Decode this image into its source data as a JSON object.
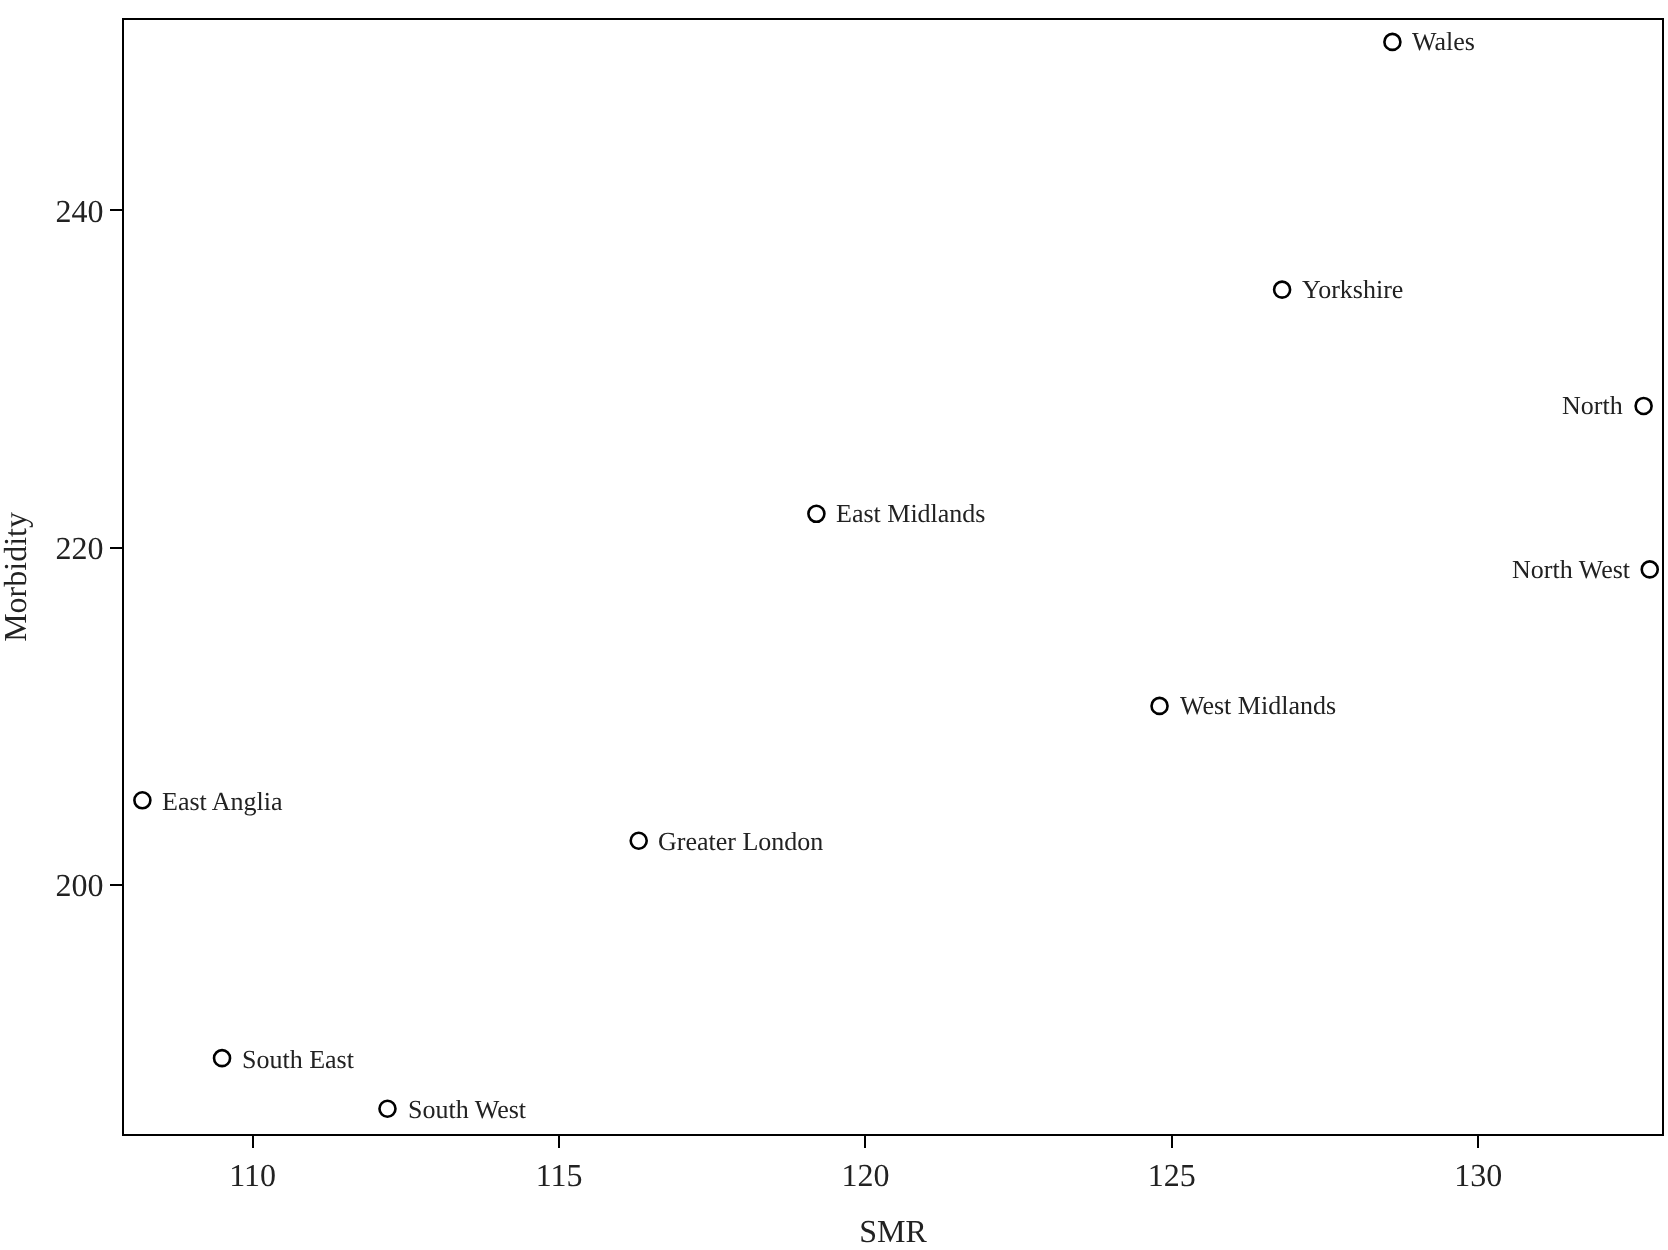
{
  "chart_data": {
    "type": "scatter",
    "xlabel": "SMR",
    "ylabel": "Morbidity",
    "x": [
      128.6,
      126.8,
      132.7,
      119.2,
      132.8,
      124.8,
      108.2,
      116.3,
      109.5,
      112.2
    ],
    "values": [
      250.0,
      235.3,
      228.4,
      222.0,
      218.7,
      210.6,
      205.0,
      202.6,
      189.7,
      186.7
    ],
    "annotations": [
      {
        "text": "Wales",
        "x": 128.6,
        "y": 250.0
      },
      {
        "text": "Yorkshire",
        "x": 126.8,
        "y": 235.3
      },
      {
        "text": "North",
        "x": 132.7,
        "y": 228.4
      },
      {
        "text": "East Midlands",
        "x": 119.2,
        "y": 222.0
      },
      {
        "text": "North West",
        "x": 132.8,
        "y": 218.7
      },
      {
        "text": "West Midlands",
        "x": 124.8,
        "y": 210.6
      },
      {
        "text": "East Anglia",
        "x": 108.2,
        "y": 205.0
      },
      {
        "text": "Greater London",
        "x": 116.3,
        "y": 202.6
      },
      {
        "text": "South East",
        "x": 109.5,
        "y": 189.7
      },
      {
        "text": "South West",
        "x": 112.2,
        "y": 186.7
      }
    ],
    "color": "#000000",
    "marker": "circle",
    "xlim": [
      107.9,
      133.0
    ],
    "xticks": [
      110,
      115,
      120,
      125,
      130
    ],
    "ylim": [
      185.2,
      251.3
    ],
    "yticks": [
      200,
      220,
      240
    ],
    "legend": false
  }
}
